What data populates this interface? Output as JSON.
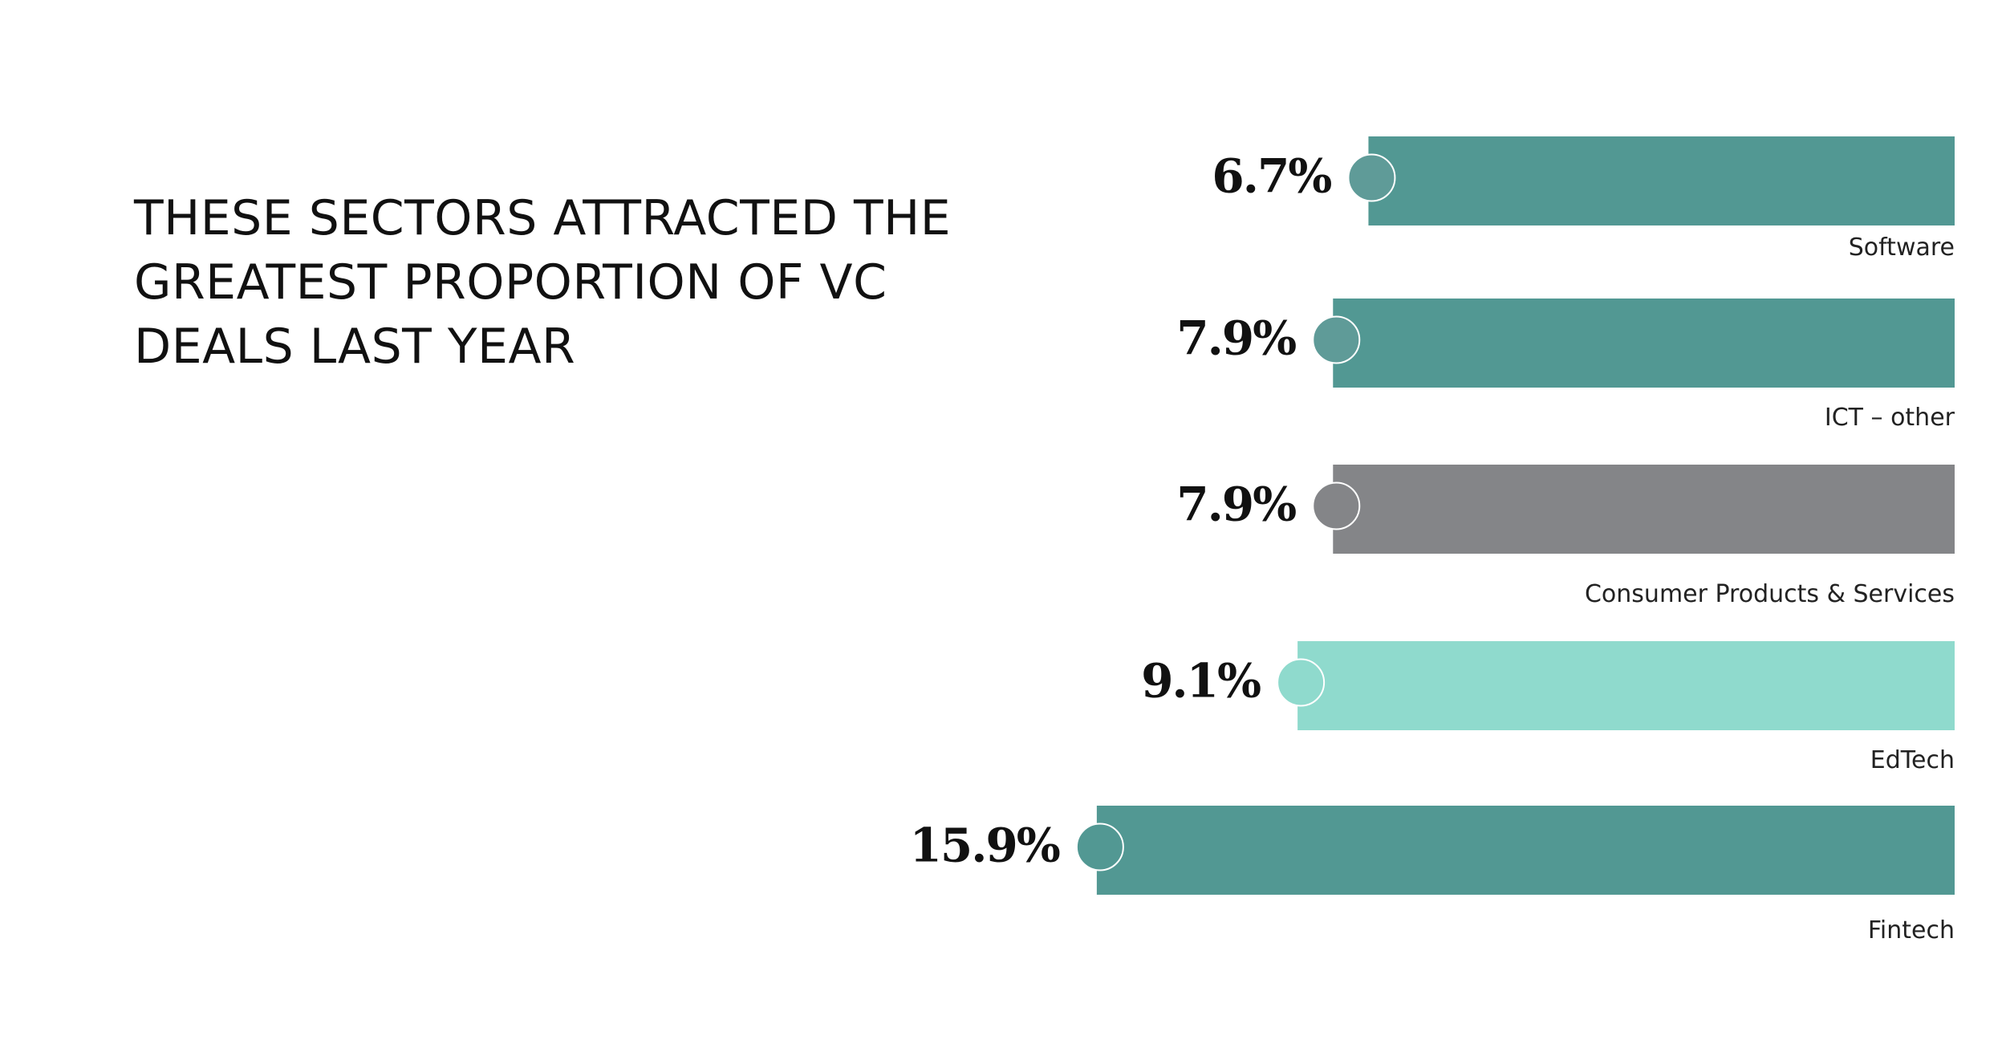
{
  "headline": "THESE SECTORS ATTRACTED THE GREATEST PROPORTION OF VC DEALS LAST YEAR",
  "chart_data": {
    "type": "bar",
    "orientation": "horizontal",
    "title": "THESE SECTORS ATTRACTED THE GREATEST PROPORTION OF VC DEALS LAST YEAR",
    "categories": [
      "Software",
      "ICT – other",
      "Consumer Products & Services",
      "EdTech",
      "Fintech"
    ],
    "values": [
      6.7,
      7.9,
      7.9,
      9.1,
      15.9
    ],
    "value_labels": [
      "6.7%",
      "7.9%",
      "7.9%",
      "9.1%",
      "15.9%"
    ],
    "unit": "%",
    "colors": [
      "#529893",
      "#529893",
      "#848588",
      "#8fdacd",
      "#529893"
    ],
    "marker_colors": [
      "#5f9b98",
      "#5f9b98",
      "#848588",
      "#8fdacd",
      "#529893"
    ],
    "bar_direction": "right-to-left",
    "grid": false,
    "legend": "none"
  }
}
